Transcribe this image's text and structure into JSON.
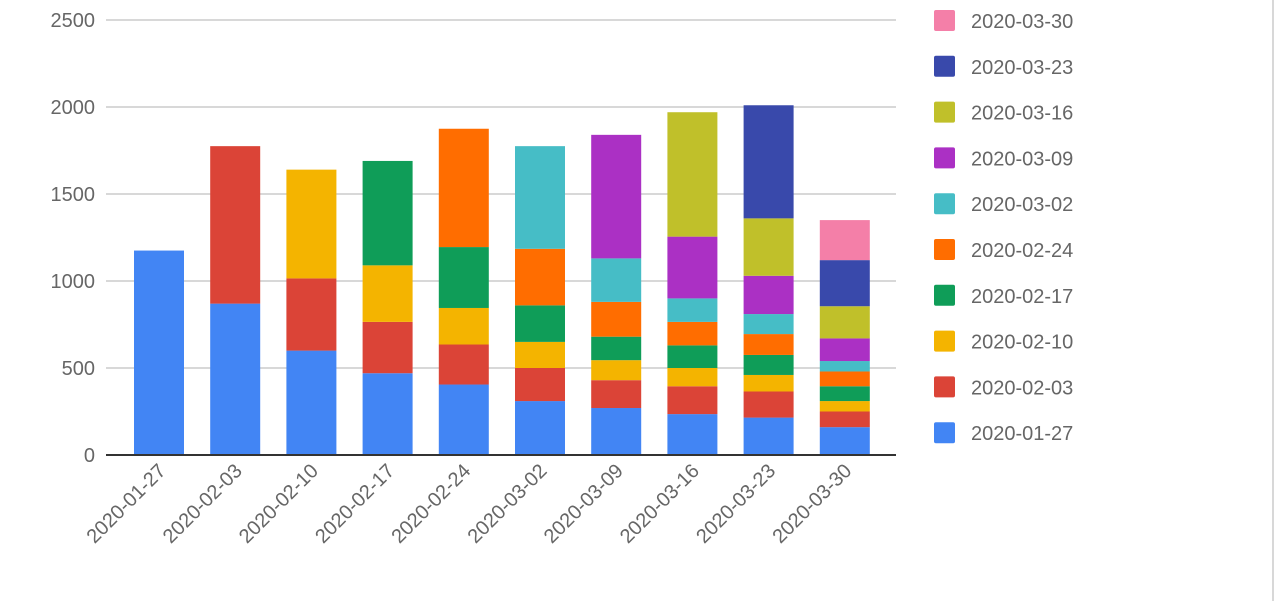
{
  "chart_data": {
    "type": "bar",
    "stacked": true,
    "categories": [
      "2020-01-27",
      "2020-02-03",
      "2020-02-10",
      "2020-02-17",
      "2020-02-24",
      "2020-03-02",
      "2020-03-09",
      "2020-03-16",
      "2020-03-23",
      "2020-03-30"
    ],
    "series": [
      {
        "name": "2020-01-27",
        "color": "#4285f4",
        "values": [
          1175,
          870,
          600,
          470,
          405,
          310,
          270,
          235,
          215,
          160
        ]
      },
      {
        "name": "2020-02-03",
        "color": "#db4437",
        "values": [
          0,
          905,
          415,
          295,
          230,
          190,
          160,
          160,
          150,
          90
        ]
      },
      {
        "name": "2020-02-10",
        "color": "#f4b400",
        "values": [
          0,
          0,
          625,
          325,
          210,
          150,
          115,
          105,
          95,
          60
        ]
      },
      {
        "name": "2020-02-17",
        "color": "#0f9d58",
        "values": [
          0,
          0,
          0,
          600,
          350,
          210,
          135,
          130,
          115,
          85
        ]
      },
      {
        "name": "2020-02-24",
        "color": "#ff6d00",
        "values": [
          0,
          0,
          0,
          0,
          680,
          325,
          200,
          135,
          120,
          85
        ]
      },
      {
        "name": "2020-03-02",
        "color": "#46bdc6",
        "values": [
          0,
          0,
          0,
          0,
          0,
          590,
          250,
          135,
          115,
          60
        ]
      },
      {
        "name": "2020-03-09",
        "color": "#ab30c4",
        "values": [
          0,
          0,
          0,
          0,
          0,
          0,
          710,
          355,
          220,
          130
        ]
      },
      {
        "name": "2020-03-16",
        "color": "#c0c02a",
        "values": [
          0,
          0,
          0,
          0,
          0,
          0,
          0,
          715,
          330,
          185
        ]
      },
      {
        "name": "2020-03-23",
        "color": "#3949ab",
        "values": [
          0,
          0,
          0,
          0,
          0,
          0,
          0,
          0,
          650,
          265
        ]
      },
      {
        "name": "2020-03-30",
        "color": "#f47fa8",
        "values": [
          0,
          0,
          0,
          0,
          0,
          0,
          0,
          0,
          0,
          230
        ]
      }
    ],
    "y_ticks": [
      "0",
      "500",
      "1000",
      "1500",
      "2000",
      "2500"
    ],
    "ylim": [
      0,
      2500
    ],
    "grid": true,
    "legend_position": "right",
    "title": "",
    "xlabel": "",
    "ylabel": ""
  }
}
